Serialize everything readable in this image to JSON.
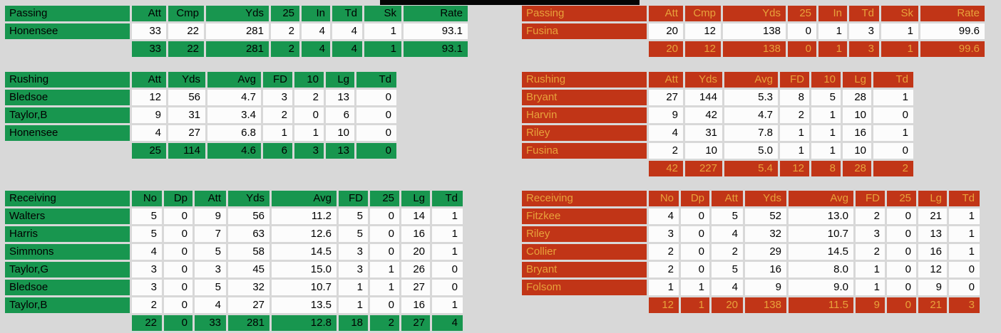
{
  "colors": {
    "background": "#d8d8d8",
    "bar": "#050505",
    "cell_white": "#fcfcfc",
    "left_accent": "#18964f",
    "left_text": "#000000",
    "right_accent": "#c13517",
    "right_text": "#e8a23b"
  },
  "left_team": {
    "passing": {
      "label": "Passing",
      "headers": [
        "Att",
        "Cmp",
        "Yds",
        "25",
        "In",
        "Td",
        "Sk",
        "Rate"
      ],
      "rows": [
        {
          "name": "Honensee",
          "values": [
            "33",
            "22",
            "281",
            "2",
            "4",
            "4",
            "1",
            "93.1"
          ]
        }
      ],
      "totals": [
        "33",
        "22",
        "281",
        "2",
        "4",
        "4",
        "1",
        "93.1"
      ]
    },
    "rushing": {
      "label": "Rushing",
      "headers": [
        "Att",
        "Yds",
        "Avg",
        "FD",
        "10",
        "Lg",
        "Td"
      ],
      "rows": [
        {
          "name": "Bledsoe",
          "values": [
            "12",
            "56",
            "4.7",
            "3",
            "2",
            "13",
            "0"
          ]
        },
        {
          "name": "Taylor,B",
          "values": [
            "9",
            "31",
            "3.4",
            "2",
            "0",
            "6",
            "0"
          ]
        },
        {
          "name": "Honensee",
          "values": [
            "4",
            "27",
            "6.8",
            "1",
            "1",
            "10",
            "0"
          ]
        }
      ],
      "totals": [
        "25",
        "114",
        "4.6",
        "6",
        "3",
        "13",
        "0"
      ]
    },
    "receiving": {
      "label": "Receiving",
      "headers": [
        "No",
        "Dp",
        "Att",
        "Yds",
        "Avg",
        "FD",
        "25",
        "Lg",
        "Td"
      ],
      "rows": [
        {
          "name": "Walters",
          "values": [
            "5",
            "0",
            "9",
            "56",
            "11.2",
            "5",
            "0",
            "14",
            "1"
          ]
        },
        {
          "name": "Harris",
          "values": [
            "5",
            "0",
            "7",
            "63",
            "12.6",
            "5",
            "0",
            "16",
            "1"
          ]
        },
        {
          "name": "Simmons",
          "values": [
            "4",
            "0",
            "5",
            "58",
            "14.5",
            "3",
            "0",
            "20",
            "1"
          ]
        },
        {
          "name": "Taylor,G",
          "values": [
            "3",
            "0",
            "3",
            "45",
            "15.0",
            "3",
            "1",
            "26",
            "0"
          ]
        },
        {
          "name": "Bledsoe",
          "values": [
            "3",
            "0",
            "5",
            "32",
            "10.7",
            "1",
            "1",
            "27",
            "0"
          ]
        },
        {
          "name": "Taylor,B",
          "values": [
            "2",
            "0",
            "4",
            "27",
            "13.5",
            "1",
            "0",
            "16",
            "1"
          ]
        }
      ],
      "totals": [
        "22",
        "0",
        "33",
        "281",
        "12.8",
        "18",
        "2",
        "27",
        "4"
      ]
    }
  },
  "right_team": {
    "passing": {
      "label": "Passing",
      "headers": [
        "Att",
        "Cmp",
        "Yds",
        "25",
        "In",
        "Td",
        "Sk",
        "Rate"
      ],
      "rows": [
        {
          "name": "Fusina",
          "values": [
            "20",
            "12",
            "138",
            "0",
            "1",
            "3",
            "1",
            "99.6"
          ]
        }
      ],
      "totals": [
        "20",
        "12",
        "138",
        "0",
        "1",
        "3",
        "1",
        "99.6"
      ]
    },
    "rushing": {
      "label": "Rushing",
      "headers": [
        "Att",
        "Yds",
        "Avg",
        "FD",
        "10",
        "Lg",
        "Td"
      ],
      "rows": [
        {
          "name": "Bryant",
          "values": [
            "27",
            "144",
            "5.3",
            "8",
            "5",
            "28",
            "1"
          ]
        },
        {
          "name": "Harvin",
          "values": [
            "9",
            "42",
            "4.7",
            "2",
            "1",
            "10",
            "0"
          ]
        },
        {
          "name": "Riley",
          "values": [
            "4",
            "31",
            "7.8",
            "1",
            "1",
            "16",
            "1"
          ]
        },
        {
          "name": "Fusina",
          "values": [
            "2",
            "10",
            "5.0",
            "1",
            "1",
            "10",
            "0"
          ]
        }
      ],
      "totals": [
        "42",
        "227",
        "5.4",
        "12",
        "8",
        "28",
        "2"
      ]
    },
    "receiving": {
      "label": "Receiving",
      "headers": [
        "No",
        "Dp",
        "Att",
        "Yds",
        "Avg",
        "FD",
        "25",
        "Lg",
        "Td"
      ],
      "rows": [
        {
          "name": "Fitzkee",
          "values": [
            "4",
            "0",
            "5",
            "52",
            "13.0",
            "2",
            "0",
            "21",
            "1"
          ]
        },
        {
          "name": "Riley",
          "values": [
            "3",
            "0",
            "4",
            "32",
            "10.7",
            "3",
            "0",
            "13",
            "1"
          ]
        },
        {
          "name": "Collier",
          "values": [
            "2",
            "0",
            "2",
            "29",
            "14.5",
            "2",
            "0",
            "16",
            "1"
          ]
        },
        {
          "name": "Bryant",
          "values": [
            "2",
            "0",
            "5",
            "16",
            "8.0",
            "1",
            "0",
            "12",
            "0"
          ]
        },
        {
          "name": "Folsom",
          "values": [
            "1",
            "1",
            "4",
            "9",
            "9.0",
            "1",
            "0",
            "9",
            "0"
          ]
        }
      ],
      "totals": [
        "12",
        "1",
        "20",
        "138",
        "11.5",
        "9",
        "0",
        "21",
        "3"
      ]
    }
  }
}
